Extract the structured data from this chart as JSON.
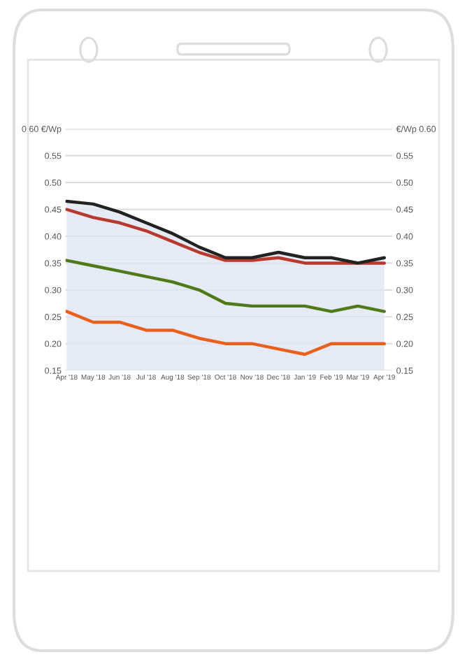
{
  "chart_data": {
    "type": "line",
    "categories": [
      "Apr '18",
      "May '18",
      "Jun '18",
      "Jul '18",
      "Aug '18",
      "Sep '18",
      "Oct '18",
      "Nov '18",
      "Dec '18",
      "Jan '19",
      "Feb '19",
      "Mar '19",
      "Apr '19"
    ],
    "series": [
      {
        "type": "area",
        "color": "#222222",
        "values": [
          0.465,
          0.46,
          0.445,
          0.425,
          0.405,
          0.38,
          0.36,
          0.36,
          0.37,
          0.36,
          0.36,
          0.35,
          0.36
        ]
      },
      {
        "color": "#b83a2e",
        "values": [
          0.45,
          0.435,
          0.425,
          0.41,
          0.39,
          0.37,
          0.355,
          0.355,
          0.36,
          0.35,
          0.35,
          0.35,
          0.35
        ]
      },
      {
        "color": "#4e7a1a",
        "values": [
          0.355,
          0.345,
          0.335,
          0.325,
          0.315,
          0.3,
          0.275,
          0.27,
          0.27,
          0.27,
          0.26,
          0.27,
          0.26
        ]
      },
      {
        "color": "#e8601c",
        "values": [
          0.26,
          0.24,
          0.24,
          0.225,
          0.225,
          0.21,
          0.2,
          0.2,
          0.19,
          0.18,
          0.2,
          0.2,
          0.2
        ]
      }
    ],
    "ylim": [
      0.15,
      0.6
    ],
    "yticks": [
      {
        "value": 0.15,
        "label": "0.15"
      },
      {
        "value": 0.2,
        "label": "0.20"
      },
      {
        "value": 0.25,
        "label": "0.25"
      },
      {
        "value": 0.3,
        "label": "0.30"
      },
      {
        "value": 0.35,
        "label": "0.35"
      },
      {
        "value": 0.4,
        "label": "0.40"
      },
      {
        "value": 0.45,
        "label": "0.45"
      },
      {
        "value": 0.5,
        "label": "0.50"
      },
      {
        "value": 0.55,
        "label": "0.55"
      },
      {
        "value": 0.6,
        "label": "0.60 €/Wp"
      }
    ],
    "y2lim": [
      0.15,
      0.6
    ],
    "y2ticks": [
      {
        "value": 0.15,
        "label": "0.15"
      },
      {
        "value": 0.2,
        "label": "0.20"
      },
      {
        "value": 0.25,
        "label": "0.25"
      },
      {
        "value": 0.3,
        "label": "0.30"
      },
      {
        "value": 0.35,
        "label": "0.35"
      },
      {
        "value": 0.4,
        "label": "0.40"
      },
      {
        "value": 0.45,
        "label": "0.45"
      },
      {
        "value": 0.5,
        "label": "0.50"
      },
      {
        "value": 0.55,
        "label": "0.55"
      },
      {
        "value": 0.6,
        "label": "€/Wp 0.60"
      }
    ],
    "grid": "y",
    "legend": false,
    "line_style": "solid",
    "marker": "none"
  }
}
